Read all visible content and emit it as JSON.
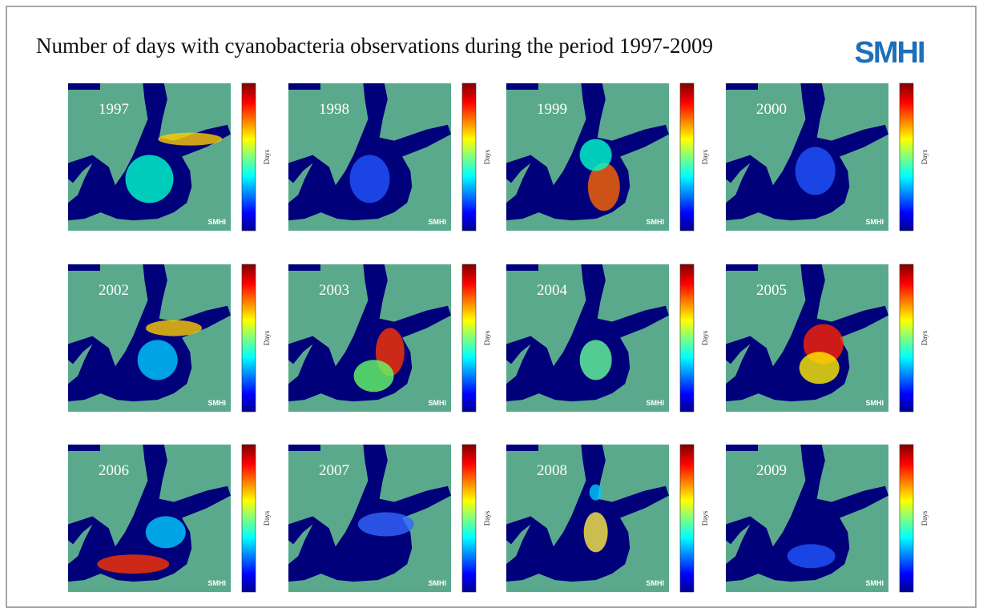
{
  "title": "Number of days with cyanobacteria observations during the period 1997-2009",
  "logo": "SMHI",
  "panels": [
    {
      "year": "1997",
      "colorbar_label": "Days",
      "watermark": "SMHI"
    },
    {
      "year": "1998",
      "colorbar_label": "Days",
      "watermark": "SMHI"
    },
    {
      "year": "1999",
      "colorbar_label": "Days",
      "watermark": "SMHI"
    },
    {
      "year": "2000",
      "colorbar_label": "Days",
      "watermark": "SMHI"
    },
    {
      "year": "2002",
      "colorbar_label": "Days",
      "watermark": "SMHI"
    },
    {
      "year": "2003",
      "colorbar_label": "Days",
      "watermark": "SMHI"
    },
    {
      "year": "2004",
      "colorbar_label": "Days",
      "watermark": "SMHI"
    },
    {
      "year": "2005",
      "colorbar_label": "Days",
      "watermark": "SMHI"
    },
    {
      "year": "2006",
      "colorbar_label": "Days",
      "watermark": "SMHI"
    },
    {
      "year": "2007",
      "colorbar_label": "Days",
      "watermark": "SMHI"
    },
    {
      "year": "2008",
      "colorbar_label": "Days",
      "watermark": "SMHI"
    },
    {
      "year": "2009",
      "colorbar_label": "Days",
      "watermark": "SMHI"
    }
  ]
}
